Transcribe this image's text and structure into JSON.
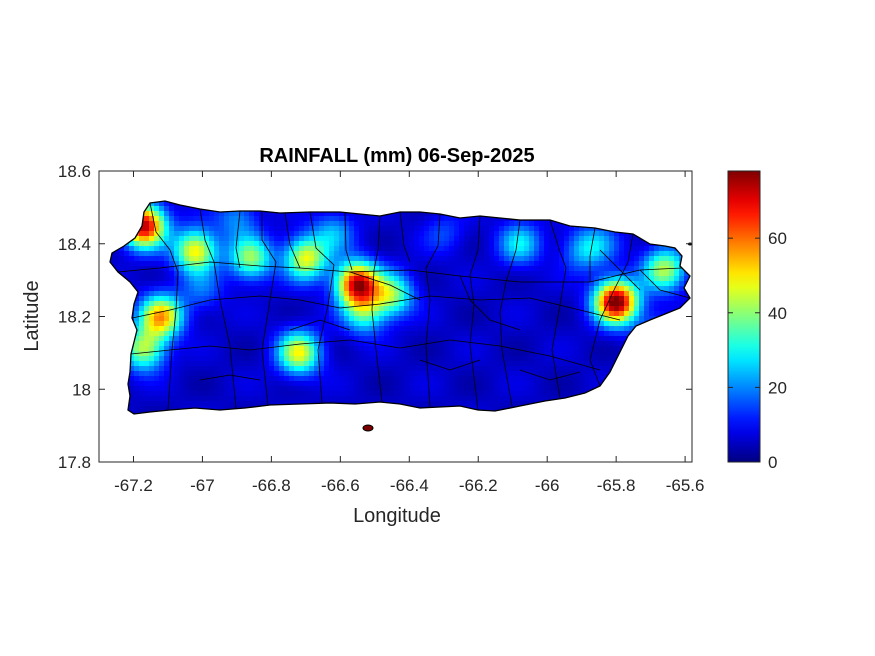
{
  "chart_data": {
    "type": "heatmap",
    "title": "RAINFALL (mm) 06-Sep-2025",
    "xlabel": "Longitude",
    "ylabel": "Latitude",
    "xlim": [
      -67.3,
      -65.58
    ],
    "ylim": [
      17.8,
      18.6
    ],
    "x_ticks": [
      -67.2,
      -67.0,
      -66.8,
      -66.6,
      -66.4,
      -66.2,
      -66.0,
      -65.8,
      -65.6
    ],
    "x_tick_labels": [
      "-67.2",
      "-67",
      "-66.8",
      "-66.6",
      "-66.4",
      "-66.2",
      "-66",
      "-65.8",
      "-65.6"
    ],
    "y_ticks": [
      17.8,
      18.0,
      18.2,
      18.4,
      18.6
    ],
    "y_tick_labels": [
      "17.8",
      "18",
      "18.2",
      "18.4",
      "18.6"
    ],
    "colorbar": {
      "colormap": "jet",
      "range": [
        0,
        78
      ],
      "ticks": [
        0,
        20,
        40,
        60
      ],
      "tick_labels": [
        "0",
        "20",
        "40",
        "60"
      ]
    },
    "background_level_mm": 3,
    "rain_cells": [
      {
        "lon": -67.17,
        "lat": 18.45,
        "peak_mm": 72
      },
      {
        "lon": -67.02,
        "lat": 18.38,
        "peak_mm": 48
      },
      {
        "lon": -66.86,
        "lat": 18.36,
        "peak_mm": 38
      },
      {
        "lon": -66.7,
        "lat": 18.36,
        "peak_mm": 45
      },
      {
        "lon": -66.55,
        "lat": 18.29,
        "peak_mm": 70
      },
      {
        "lon": -66.45,
        "lat": 18.26,
        "peak_mm": 36
      },
      {
        "lon": -66.53,
        "lat": 18.21,
        "peak_mm": 30
      },
      {
        "lon": -67.12,
        "lat": 18.2,
        "peak_mm": 52
      },
      {
        "lon": -67.17,
        "lat": 18.11,
        "peak_mm": 40
      },
      {
        "lon": -66.72,
        "lat": 18.1,
        "peak_mm": 45
      },
      {
        "lon": -65.8,
        "lat": 18.24,
        "peak_mm": 78
      },
      {
        "lon": -65.66,
        "lat": 18.33,
        "peak_mm": 40
      },
      {
        "lon": -66.08,
        "lat": 18.4,
        "peak_mm": 25
      },
      {
        "lon": -65.9,
        "lat": 18.38,
        "peak_mm": 18
      },
      {
        "lon": -65.85,
        "lat": 18.4,
        "peak_mm": 16
      },
      {
        "lon": -66.9,
        "lat": 18.47,
        "peak_mm": 18
      },
      {
        "lon": -66.3,
        "lat": 18.43,
        "peak_mm": 12
      },
      {
        "lon": -65.68,
        "lat": 18.16,
        "peak_mm": 15
      },
      {
        "lon": -66.62,
        "lat": 18.43,
        "peak_mm": 20
      },
      {
        "lon": -67.0,
        "lat": 18.27,
        "peak_mm": 14
      }
    ],
    "grid": false,
    "box": true
  }
}
